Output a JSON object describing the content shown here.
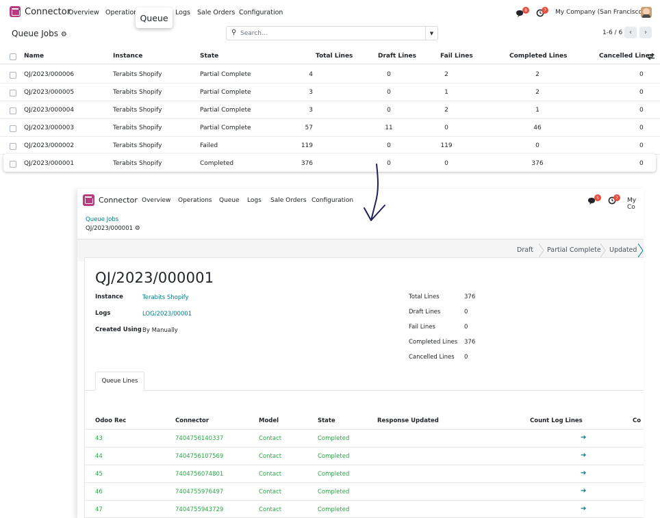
{
  "topbar": {
    "app_name": "Connector",
    "menu": [
      "Overview",
      "Operations",
      "Logs",
      "Sale Orders",
      "Configuration"
    ],
    "tooltip": "Queue",
    "chat_badge": "8",
    "activity_badge": "7",
    "company": "My Company (San Francisco)"
  },
  "control": {
    "title": "Queue Jobs",
    "search_placeholder": "Search...",
    "pager": "1-6 / 6"
  },
  "list": {
    "columns": [
      "Name",
      "Instance",
      "State",
      "Total Lines",
      "Draft Lines",
      "Fail Lines",
      "Completed Lines",
      "Cancelled Lines"
    ],
    "rows": [
      [
        "QJ/2023/000006",
        "Terabits Shopify",
        "Partial Complete",
        "4",
        "0",
        "2",
        "2",
        "0"
      ],
      [
        "QJ/2023/000005",
        "Terabits Shopify",
        "Partial Complete",
        "3",
        "0",
        "1",
        "2",
        "0"
      ],
      [
        "QJ/2023/000004",
        "Terabits Shopify",
        "Partial Complete",
        "3",
        "0",
        "2",
        "1",
        "0"
      ],
      [
        "QJ/2023/000003",
        "Terabits Shopify",
        "Partial Complete",
        "57",
        "11",
        "0",
        "46",
        "0"
      ],
      [
        "QJ/2023/000002",
        "Terabits Shopify",
        "Failed",
        "119",
        "0",
        "119",
        "0",
        "0"
      ],
      [
        "QJ/2023/000001",
        "Terabits Shopify",
        "Completed",
        "376",
        "0",
        "0",
        "376",
        "0"
      ]
    ]
  },
  "form": {
    "app_name": "Connector",
    "menu": [
      "Overview",
      "Operations",
      "Queue",
      "Logs",
      "Sale Orders",
      "Configuration"
    ],
    "chat_badge": "5",
    "activity_badge": "7",
    "company_partial": "My Co",
    "breadcrumb_parent": "Queue Jobs",
    "breadcrumb_current": "QJ/2023/000001",
    "stages": [
      "Draft",
      "Partial Complete",
      "Updated"
    ],
    "title": "QJ/2023/000001",
    "left_fields": [
      {
        "label": "Instance",
        "value": "Terabits Shopify"
      },
      {
        "label": "Logs",
        "value": "LOG/2023/00001"
      },
      {
        "label": "Created Using",
        "value": "By Manually"
      }
    ],
    "right_fields": [
      {
        "label": "Total Lines",
        "value": "376"
      },
      {
        "label": "Draft Lines",
        "value": "0"
      },
      {
        "label": "Fail Lines",
        "value": "0"
      },
      {
        "label": "Completed Lines",
        "value": "376"
      },
      {
        "label": "Cancelled Lines",
        "value": "0"
      }
    ],
    "tab": "Queue Lines",
    "line_columns": [
      "Odoo Rec",
      "Connector",
      "Model",
      "State",
      "Response Updated",
      "Count Log Lines",
      "Co"
    ],
    "lines": [
      [
        "43",
        "7404756140337",
        "Contact",
        "Completed"
      ],
      [
        "44",
        "7404756107569",
        "Contact",
        "Completed"
      ],
      [
        "45",
        "7404756074801",
        "Contact",
        "Completed"
      ],
      [
        "46",
        "7404755976497",
        "Contact",
        "Completed"
      ],
      [
        "47",
        "7404755943729",
        "Contact",
        "Completed"
      ]
    ]
  },
  "colors": {
    "brand": "#b83b7f",
    "link": "#017e84",
    "success": "#28a745",
    "badge": "#e74c3c"
  }
}
